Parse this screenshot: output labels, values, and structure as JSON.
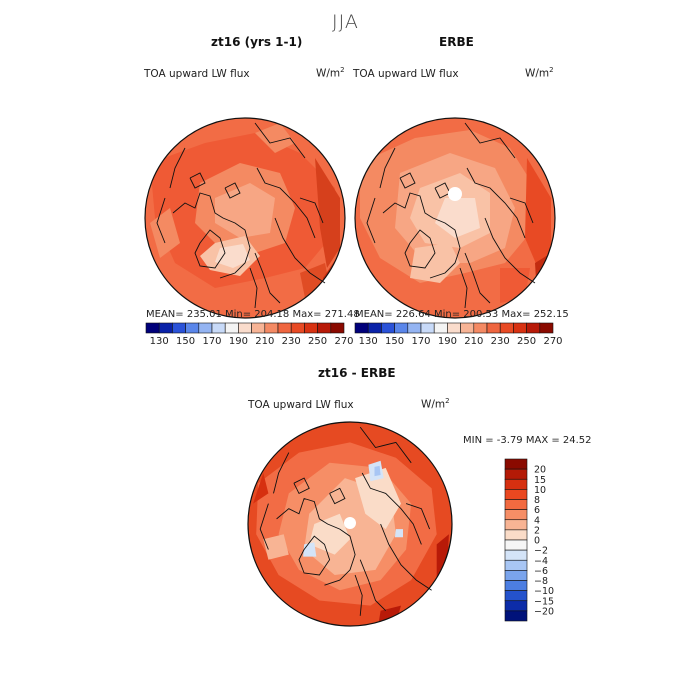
{
  "figure": {
    "season_title": "JJA"
  },
  "panels": {
    "model": {
      "title": "zt16 (yrs 1-1)",
      "variable": "TOA upward LW flux",
      "units_base": "W/m",
      "units_exp": "2",
      "stats": "MEAN= 235.01   Min= 204.18   Max= 271.48"
    },
    "obs": {
      "title": "ERBE",
      "variable": "TOA upward LW flux",
      "units_base": "W/m",
      "units_exp": "2",
      "stats": "MEAN= 226.64   Min= 200.53   Max= 252.15"
    },
    "diff": {
      "title": "zt16 - ERBE",
      "variable": "TOA upward LW flux",
      "units_base": "W/m",
      "units_exp": "2",
      "stats": "MIN =   -3.79 MAX =   24.52"
    }
  },
  "abs_colorbar": {
    "tick_labels": [
      "130",
      "150",
      "170",
      "190",
      "210",
      "230",
      "250",
      "270"
    ],
    "colors": [
      "#00007a",
      "#0a22a8",
      "#2a52d8",
      "#5a86ea",
      "#94b4f2",
      "#c8daf8",
      "#f4f4f4",
      "#fadccc",
      "#f7b496",
      "#f48a64",
      "#ef6640",
      "#e84a24",
      "#d83212",
      "#b81a08",
      "#8a0a00"
    ]
  },
  "diff_colorbar": {
    "tick_labels": [
      "20",
      "15",
      "10",
      "8",
      "6",
      "4",
      "2",
      "0",
      "−2",
      "−4",
      "−6",
      "−8",
      "−10",
      "−15",
      "−20"
    ],
    "colors": [
      "#8a0a00",
      "#b41a06",
      "#d63010",
      "#ea4820",
      "#f26a40",
      "#f68e66",
      "#f8b494",
      "#fadcc8",
      "#f6f6f6",
      "#d4e4f8",
      "#a8c6f4",
      "#7aa4ec",
      "#4c7ee2",
      "#2452cc",
      "#0c2ca8",
      "#00127a"
    ]
  },
  "maps": {
    "model": {
      "fill": "#f26c45",
      "patches": [
        {
          "c": "#ef5a35",
          "v": [
            -0.95,
            -0.55,
            -0.4,
            -0.75,
            0.1,
            -0.85,
            0.55,
            -0.65,
            0.9,
            -0.3,
            0.85,
            0.2,
            0.6,
            0.5,
            0.2,
            0.6,
            -0.3,
            0.7,
            -0.7,
            0.45,
            -0.9,
            0.0
          ]
        },
        {
          "c": "#f48a62",
          "v": [
            -0.45,
            -0.35,
            -0.05,
            -0.55,
            0.35,
            -0.45,
            0.5,
            -0.1,
            0.4,
            0.25,
            0.1,
            0.35,
            -0.25,
            0.3,
            -0.5,
            0.05
          ]
        },
        {
          "c": "#f7a684",
          "v": [
            -0.3,
            -0.2,
            0.05,
            -0.35,
            0.3,
            -0.2,
            0.25,
            0.15,
            -0.05,
            0.2,
            -0.3,
            0.05
          ]
        },
        {
          "c": "#f9c2a6",
          "v": [
            -0.3,
            0.25,
            0.0,
            0.18,
            0.15,
            0.38,
            -0.05,
            0.58,
            -0.35,
            0.52,
            -0.45,
            0.38
          ]
        },
        {
          "c": "#fadccc",
          "v": [
            -0.25,
            0.3,
            -0.02,
            0.26,
            0.05,
            0.42,
            -0.12,
            0.5,
            -0.3,
            0.44
          ]
        },
        {
          "c": "#d6401c",
          "v": [
            0.7,
            -0.6,
            0.95,
            -0.2,
            0.95,
            0.3,
            0.82,
            0.5,
            0.75,
            0.1
          ]
        },
        {
          "c": "#e04c24",
          "v": [
            0.55,
            0.55,
            0.8,
            0.45,
            0.85,
            0.7,
            0.6,
            0.8
          ]
        },
        {
          "c": "#c22c10",
          "v": [
            0.78,
            0.6,
            0.95,
            0.35,
            0.96,
            0.62,
            0.82,
            0.8
          ]
        },
        {
          "c": "#f48a62",
          "v": [
            -0.95,
            0.05,
            -0.75,
            -0.1,
            -0.65,
            0.25,
            -0.85,
            0.4
          ]
        },
        {
          "c": "#f48a62",
          "v": [
            0.1,
            -0.85,
            0.35,
            -0.95,
            0.5,
            -0.75,
            0.3,
            -0.65
          ]
        }
      ]
    },
    "obs": {
      "fill": "#f26c45",
      "patches": [
        {
          "c": "#f48a62",
          "v": [
            -0.95,
            -0.55,
            -0.4,
            -0.8,
            0.15,
            -0.88,
            0.55,
            -0.7,
            0.8,
            -0.3,
            0.75,
            0.15,
            0.5,
            0.45,
            0.1,
            0.55,
            -0.35,
            0.65,
            -0.75,
            0.4,
            -0.95,
            0.0
          ]
        },
        {
          "c": "#f7a684",
          "v": [
            -0.55,
            -0.45,
            -0.05,
            -0.65,
            0.4,
            -0.5,
            0.6,
            -0.1,
            0.5,
            0.3,
            0.15,
            0.45,
            -0.3,
            0.45,
            -0.6,
            0.1
          ]
        },
        {
          "c": "#f9c2a6",
          "v": [
            -0.35,
            -0.3,
            0.05,
            -0.45,
            0.35,
            -0.25,
            0.35,
            0.15,
            0.05,
            0.3,
            -0.3,
            0.25,
            -0.45,
            0.0
          ]
        },
        {
          "c": "#fadccc",
          "v": [
            -0.1,
            -0.2,
            0.2,
            -0.2,
            0.25,
            0.1,
            0.0,
            0.2,
            -0.2,
            0.05
          ]
        },
        {
          "c": "#f9c2a6",
          "v": [
            -0.4,
            0.3,
            -0.05,
            0.25,
            0.05,
            0.45,
            -0.15,
            0.65,
            -0.45,
            0.6
          ]
        },
        {
          "c": "#e84a24",
          "v": [
            0.72,
            -0.6,
            0.96,
            -0.2,
            0.96,
            0.3,
            0.85,
            0.55,
            0.7,
            0.2
          ]
        },
        {
          "c": "#c22c10",
          "v": [
            0.8,
            0.45,
            0.96,
            0.35,
            0.95,
            0.65,
            0.82,
            0.78
          ]
        },
        {
          "c": "#ef5a35",
          "v": [
            0.45,
            0.5,
            0.75,
            0.5,
            0.7,
            0.8,
            0.45,
            0.85
          ]
        }
      ]
    },
    "diff": {
      "fill": "#e64a22",
      "patches": [
        {
          "c": "#f26c45",
          "v": [
            -0.9,
            -0.4,
            -0.5,
            -0.7,
            0.0,
            -0.8,
            0.45,
            -0.65,
            0.8,
            -0.35,
            0.85,
            0.1,
            0.6,
            0.55,
            0.2,
            0.8,
            -0.3,
            0.75,
            -0.7,
            0.5,
            -0.92,
            0.1
          ]
        },
        {
          "c": "#f68e66",
          "v": [
            -0.6,
            -0.3,
            -0.2,
            -0.6,
            0.3,
            -0.55,
            0.6,
            -0.2,
            0.55,
            0.25,
            0.3,
            0.55,
            -0.1,
            0.65,
            -0.5,
            0.45,
            -0.7,
            0.1
          ]
        },
        {
          "c": "#f8b494",
          "v": [
            -0.4,
            -0.1,
            -0.05,
            -0.45,
            0.4,
            -0.3,
            0.45,
            0.1,
            0.25,
            0.45,
            -0.15,
            0.5,
            -0.45,
            0.25
          ]
        },
        {
          "c": "#fadcc8",
          "v": [
            0.05,
            -0.45,
            0.35,
            -0.55,
            0.5,
            -0.2,
            0.35,
            0.05,
            0.15,
            -0.1
          ]
        },
        {
          "c": "#fadcc8",
          "v": [
            -0.35,
            0.0,
            -0.1,
            -0.1,
            0.0,
            0.15,
            -0.15,
            0.3,
            -0.4,
            0.2
          ]
        },
        {
          "c": "#d4e4f8",
          "v": [
            0.18,
            -0.58,
            0.3,
            -0.62,
            0.33,
            -0.45,
            0.2,
            -0.42
          ]
        },
        {
          "c": "#d4e4f8",
          "v": [
            -0.45,
            0.2,
            -0.35,
            0.18,
            -0.33,
            0.32,
            -0.46,
            0.32
          ]
        },
        {
          "c": "#d4e4f8",
          "v": [
            0.45,
            0.05,
            0.52,
            0.05,
            0.52,
            0.13,
            0.44,
            0.13
          ]
        },
        {
          "c": "#a8c6f4",
          "v": [
            0.24,
            -0.56,
            0.29,
            -0.57,
            0.3,
            -0.48,
            0.24,
            -0.47
          ]
        },
        {
          "c": "#b81a08",
          "v": [
            0.85,
            0.2,
            0.97,
            0.1,
            0.95,
            0.5,
            0.85,
            0.55
          ]
        },
        {
          "c": "#b81a08",
          "v": [
            0.3,
            0.85,
            0.5,
            0.8,
            0.45,
            0.97,
            0.28,
            0.97
          ]
        },
        {
          "c": "#d63010",
          "v": [
            -0.95,
            -0.2,
            -0.85,
            -0.5,
            -0.8,
            -0.3
          ]
        },
        {
          "c": "#f8b494",
          "v": [
            -0.85,
            0.15,
            -0.65,
            0.1,
            -0.6,
            0.3,
            -0.8,
            0.35
          ]
        }
      ]
    }
  }
}
